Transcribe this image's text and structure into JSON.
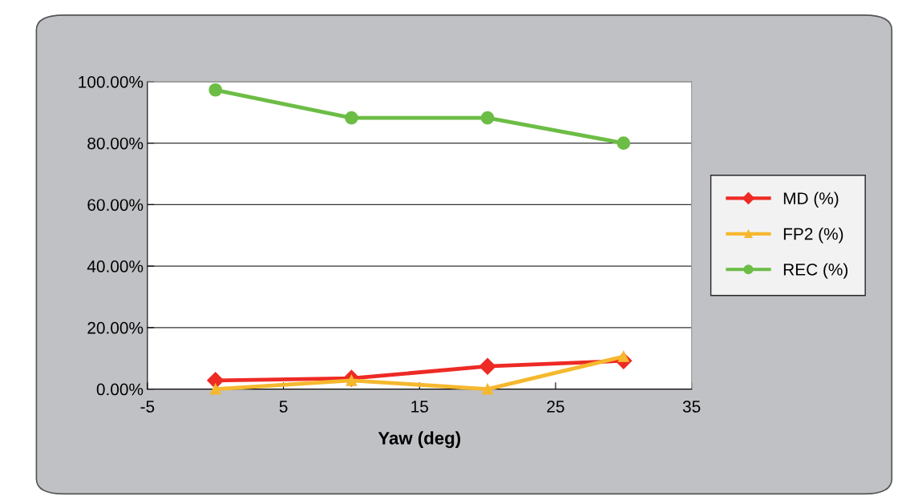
{
  "chart_data": {
    "type": "line",
    "xlabel": "Yaw (deg)",
    "x": [
      0,
      10,
      20,
      30
    ],
    "series": [
      {
        "name": "MD (%)",
        "color": "#ee2a24",
        "marker": "diamond",
        "values": [
          2.8,
          3.5,
          7.4,
          9.2
        ]
      },
      {
        "name": "FP2 (%)",
        "color": "#f5b82e",
        "marker": "triangle",
        "values": [
          0,
          2.8,
          0,
          10.6
        ]
      },
      {
        "name": "REC (%)",
        "color": "#6cbd45",
        "marker": "circle",
        "values": [
          97.3,
          88.2,
          88.2,
          80
        ]
      }
    ],
    "xlim": [
      -5,
      35
    ],
    "xticks": [
      -5,
      5,
      15,
      25,
      35
    ],
    "ylim": [
      0,
      100
    ],
    "yticks": [
      {
        "value": 0,
        "label": "0.00%"
      },
      {
        "value": 20,
        "label": "20.00%"
      },
      {
        "value": 40,
        "label": "40.00%"
      },
      {
        "value": 60,
        "label": "60.00%"
      },
      {
        "value": 80,
        "label": "80.00%"
      },
      {
        "value": 100,
        "label": "100.00%"
      }
    ],
    "grid": "y",
    "legend": "right"
  }
}
